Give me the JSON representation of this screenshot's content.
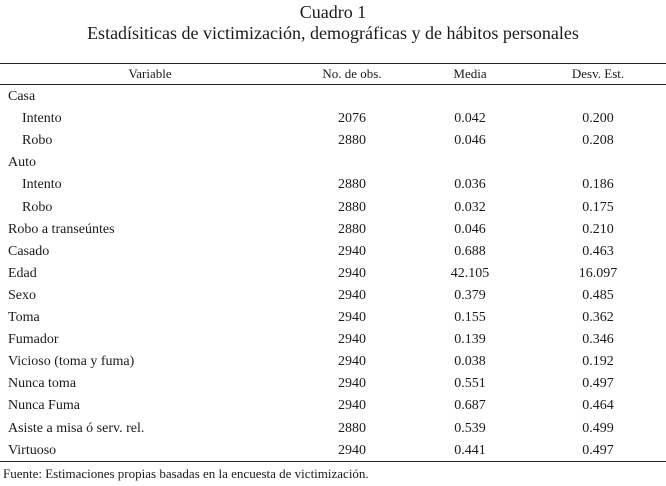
{
  "caption": {
    "title": "Cuadro 1",
    "subtitle": "Estadísiticas de victimización, demográficas y de hábitos personales"
  },
  "table": {
    "headers": [
      "Variable",
      "No. de obs.",
      "Media",
      "Desv. Est."
    ],
    "rows": [
      {
        "label": "Casa",
        "indent": false,
        "obs": "",
        "media": "",
        "sd": ""
      },
      {
        "label": "Intento",
        "indent": true,
        "obs": "2076",
        "media": "0.042",
        "sd": "0.200"
      },
      {
        "label": "Robo",
        "indent": true,
        "obs": "2880",
        "media": "0.046",
        "sd": "0.208"
      },
      {
        "label": "Auto",
        "indent": false,
        "obs": "",
        "media": "",
        "sd": ""
      },
      {
        "label": "Intento",
        "indent": true,
        "obs": "2880",
        "media": "0.036",
        "sd": "0.186"
      },
      {
        "label": "Robo",
        "indent": true,
        "obs": "2880",
        "media": "0.032",
        "sd": "0.175"
      },
      {
        "label": "Robo a transeúntes",
        "indent": false,
        "obs": "2880",
        "media": "0.046",
        "sd": "0.210"
      },
      {
        "label": "Casado",
        "indent": false,
        "obs": "2940",
        "media": "0.688",
        "sd": "0.463"
      },
      {
        "label": "Edad",
        "indent": false,
        "obs": "2940",
        "media": "42.105",
        "sd": "16.097"
      },
      {
        "label": "Sexo",
        "indent": false,
        "obs": "2940",
        "media": "0.379",
        "sd": "0.485"
      },
      {
        "label": "Toma",
        "indent": false,
        "obs": "2940",
        "media": "0.155",
        "sd": "0.362"
      },
      {
        "label": "Fumador",
        "indent": false,
        "obs": "2940",
        "media": "0.139",
        "sd": "0.346"
      },
      {
        "label": "Vicioso (toma y fuma)",
        "indent": false,
        "obs": "2940",
        "media": "0.038",
        "sd": "0.192"
      },
      {
        "label": "Nunca toma",
        "indent": false,
        "obs": "2940",
        "media": "0.551",
        "sd": "0.497"
      },
      {
        "label": "Nunca Fuma",
        "indent": false,
        "obs": "2940",
        "media": "0.687",
        "sd": "0.464"
      },
      {
        "label": "Asiste a misa ó serv. rel.",
        "indent": false,
        "obs": "2880",
        "media": "0.539",
        "sd": "0.499"
      },
      {
        "label": "Virtuoso",
        "indent": false,
        "obs": "2940",
        "media": "0.441",
        "sd": "0.497"
      }
    ]
  },
  "footnote": "Fuente: Estimaciones propias basadas en la encuesta de victimización."
}
